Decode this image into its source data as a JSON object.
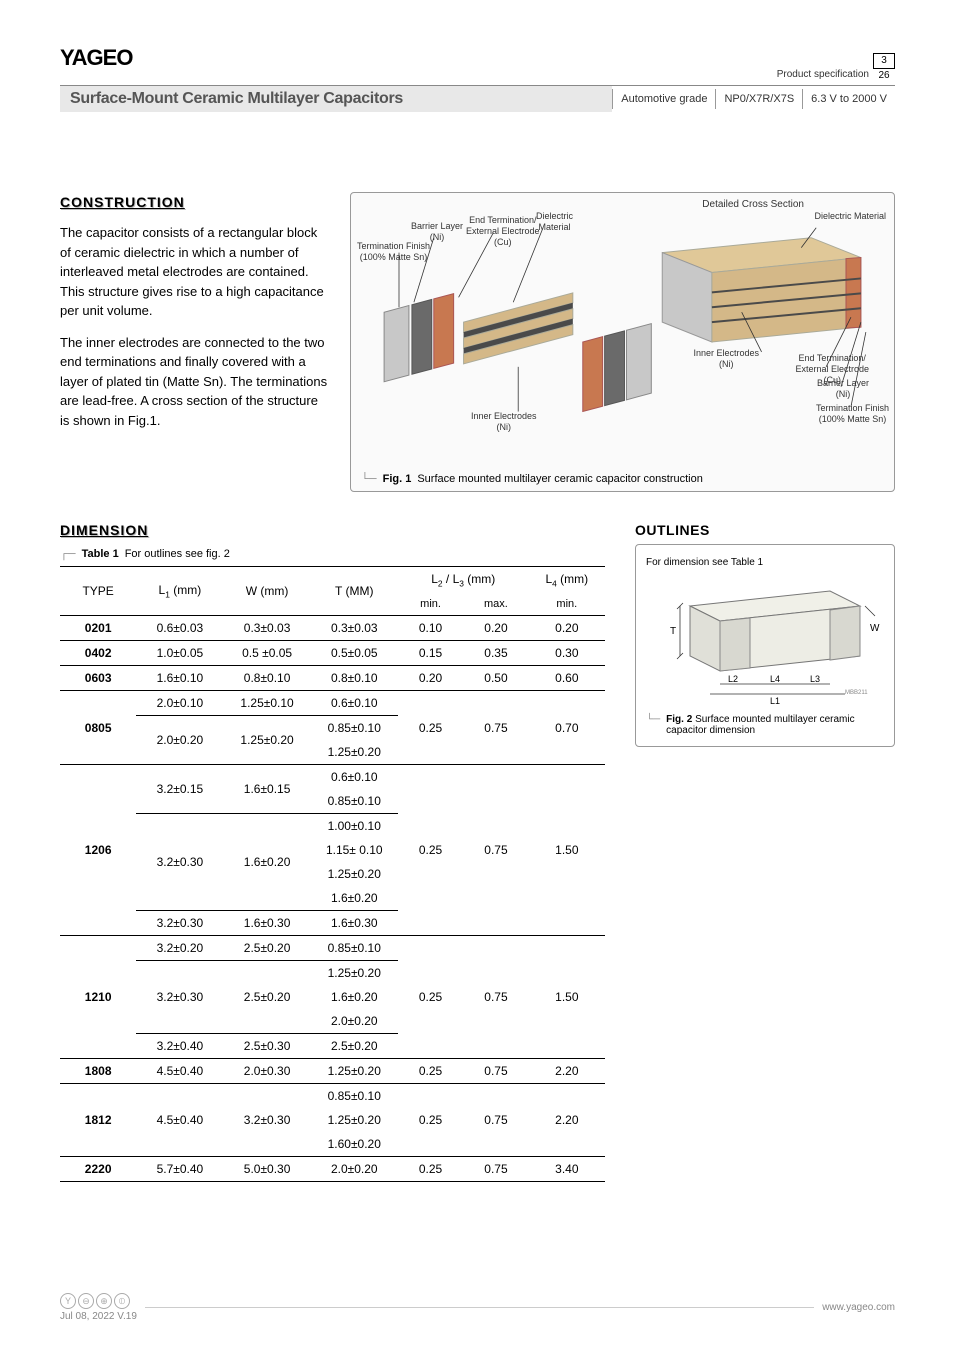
{
  "header": {
    "logo": "YAGEO",
    "spec_label": "Product specification",
    "page_num": "3",
    "page_total": "26",
    "title_main": "Surface-Mount Ceramic Multilayer Capacitors",
    "cell_grade": "Automotive grade",
    "cell_dielectric": "NP0/X7R/X7S",
    "cell_voltage": "6.3 V to 2000 V"
  },
  "construction": {
    "heading": "CONSTRUCTION",
    "para1": "The capacitor consists of a rectangular block of ceramic dielectric in which a number of interleaved metal electrodes are contained. This structure gives rise to a high capacitance per unit volume.",
    "para2": "The inner electrodes are connected to the two end terminations and finally covered with a layer of plated tin (Matte Sn). The terminations are lead-free. A cross section of the structure is shown in Fig.1.",
    "fig_label": "Fig. 1",
    "fig_text": "Surface mounted multilayer ceramic capacitor construction",
    "detailed_label": "Detailed Cross Section",
    "labels": {
      "barrier": "Barrier Layer\n(Ni)",
      "termfinish": "Termination Finish\n(100% Matte Sn)",
      "endterm": "End Termination/\nExternal Electrode\n(Cu)",
      "dielectric": "Dielectric\nMaterial",
      "inner": "Inner Electrodes\n(Ni)",
      "dielectric2": "Dielectric Material",
      "inner2": "Inner Electrodes\n(Ni)",
      "endterm2": "End Termination/\nExternal Electrode\n(Cu)",
      "barrier2": "Barrier Layer\n(Ni)",
      "termfinish2": "Termination Finish\n(100% Matte Sn)"
    },
    "colors": {
      "body": "#d4b888",
      "body_dark": "#b89968",
      "electrode": "#4a4a4a",
      "barrier": "#6a6a6a",
      "copper": "#c87850",
      "tin": "#c8c8c8",
      "box_border": "#999",
      "box_bg": "#fafafa"
    }
  },
  "dimension": {
    "heading": "DIMENSION",
    "table_label": "Table 1",
    "table_text": "For outlines see fig. 2",
    "columns": {
      "type": "TYPE",
      "l1": "L₁ (mm)",
      "w": "W (mm)",
      "t": "T (MM)",
      "l23": "L₂ / L₃ (mm)",
      "l4": "L₄ (mm)",
      "min": "min.",
      "max": "max."
    },
    "rows": [
      {
        "type": "0201",
        "cells": [
          [
            "0.6±0.03",
            "0.3±0.03",
            "0.3±0.03"
          ]
        ],
        "l23min": "0.10",
        "l23max": "0.20",
        "l4min": "0.20"
      },
      {
        "type": "0402",
        "cells": [
          [
            "1.0±0.05",
            "0.5 ±0.05",
            "0.5±0.05"
          ]
        ],
        "l23min": "0.15",
        "l23max": "0.35",
        "l4min": "0.30"
      },
      {
        "type": "0603",
        "cells": [
          [
            "1.6±0.10",
            "0.8±0.10",
            "0.8±0.10"
          ]
        ],
        "l23min": "0.20",
        "l23max": "0.50",
        "l4min": "0.60"
      },
      {
        "type": "0805",
        "cells": [
          [
            "2.0±0.10",
            "1.25±0.10",
            "0.6±0.10"
          ],
          [
            "2.0±0.20",
            "1.25±0.20",
            "0.85±0.10"
          ],
          [
            "",
            "",
            "1.25±0.20"
          ]
        ],
        "l23min": "0.25",
        "l23max": "0.75",
        "l4min": "0.70",
        "splits": [
          1
        ]
      },
      {
        "type": "1206",
        "cells": [
          [
            "3.2±0.15",
            "1.6±0.15",
            "0.6±0.10"
          ],
          [
            "",
            "",
            "0.85±0.10"
          ],
          [
            "3.2±0.30",
            "1.6±0.20",
            "1.00±0.10"
          ],
          [
            "",
            "",
            "1.15± 0.10"
          ],
          [
            "",
            "",
            "1.25±0.20"
          ],
          [
            "",
            "",
            "1.6±0.20"
          ],
          [
            "3.2±0.30",
            "1.6±0.30",
            "1.6±0.30"
          ]
        ],
        "l23min": "0.25",
        "l23max": "0.75",
        "l4min": "1.50",
        "splits": [
          2,
          6
        ]
      },
      {
        "type": "1210",
        "cells": [
          [
            "3.2±0.20",
            "2.5±0.20",
            "0.85±0.10"
          ],
          [
            "3.2±0.30",
            "2.5±0.20",
            "1.25±0.20"
          ],
          [
            "",
            "",
            "1.6±0.20"
          ],
          [
            "",
            "",
            "2.0±0.20"
          ],
          [
            "3.2±0.40",
            "2.5±0.30",
            "2.5±0.20"
          ]
        ],
        "l23min": "0.25",
        "l23max": "0.75",
        "l4min": "1.50",
        "splits": [
          1,
          4
        ]
      },
      {
        "type": "1808",
        "cells": [
          [
            "4.5±0.40",
            "2.0±0.30",
            "1.25±0.20"
          ]
        ],
        "l23min": "0.25",
        "l23max": "0.75",
        "l4min": "2.20"
      },
      {
        "type": "1812",
        "cells": [
          [
            "4.5±0.40",
            "3.2±0.30",
            "0.85±0.10"
          ],
          [
            "",
            "",
            "1.25±0.20"
          ],
          [
            "",
            "",
            "1.60±0.20"
          ]
        ],
        "l23min": "0.25",
        "l23max": "0.75",
        "l4min": "2.20"
      },
      {
        "type": "2220",
        "cells": [
          [
            "5.7±0.40",
            "5.0±0.30",
            "2.0±0.20"
          ]
        ],
        "l23min": "0.25",
        "l23max": "0.75",
        "l4min": "3.40"
      }
    ],
    "table_styling": {
      "border_color": "#000",
      "font_size": 12,
      "col_widths": [
        "14%",
        "16%",
        "16%",
        "16%",
        "12%",
        "12%",
        "14%"
      ]
    }
  },
  "outlines": {
    "heading": "OUTLINES",
    "note": "For dimension see Table 1",
    "fig_label": "Fig. 2",
    "fig_text": "Surface mounted multilayer ceramic capacitor dimension",
    "ref": "MBB211",
    "dims": {
      "T": "T",
      "W": "W",
      "L1": "L₁",
      "L2": "L₂",
      "L3": "L₃",
      "L4": "L₄"
    },
    "colors": {
      "body": "#e8e8e0",
      "term": "#d8d8d0",
      "line": "#555"
    }
  },
  "footer": {
    "date": "Jul 08, 2022 V.19",
    "url": "www.yageo.com",
    "icons": [
      "Y",
      "⊖",
      "⊕",
      "⦶"
    ]
  }
}
